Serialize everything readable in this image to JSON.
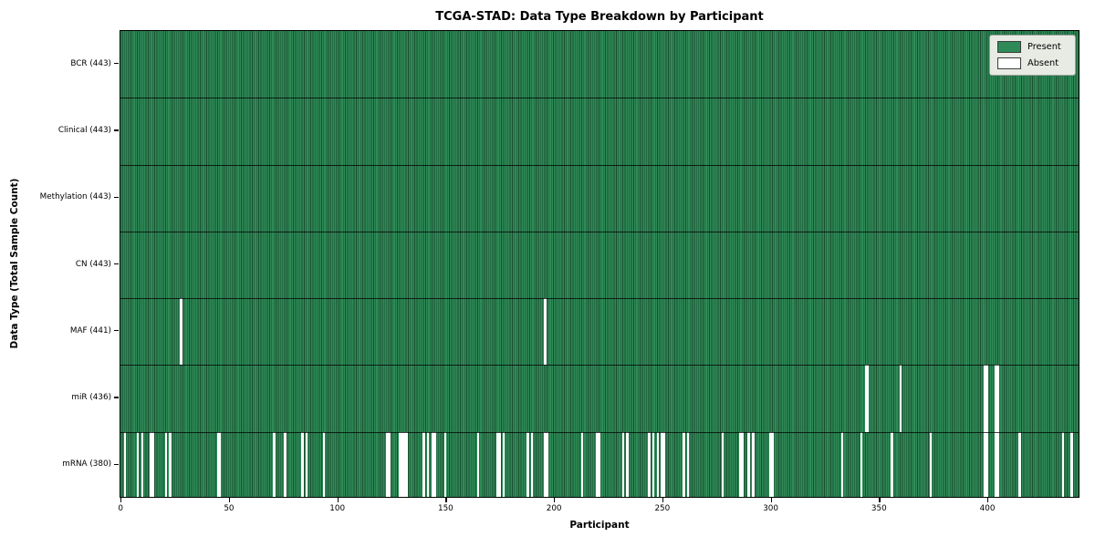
{
  "chart_data": {
    "type": "heatmap",
    "title": "TCGA-STAD: Data Type Breakdown by Participant",
    "xlabel": "Participant",
    "ylabel": "Data Type (Total Sample Count)",
    "n_participants": 443,
    "x_ticks": [
      0,
      50,
      100,
      150,
      200,
      250,
      300,
      350,
      400
    ],
    "xlim": [
      0,
      443
    ],
    "grid": false,
    "legend_position": "upper right",
    "legend": [
      {
        "label": "Present",
        "color": "#2e8b57"
      },
      {
        "label": "Absent",
        "color": "#ffffff"
      }
    ],
    "colors": {
      "present_fill": "#2e8b57",
      "bar_edge": "#1a4e30",
      "absent_fill": "#ffffff",
      "separator": "#000000"
    },
    "rows": [
      {
        "label": "BCR (443)",
        "data_type": "BCR",
        "present_count": 443,
        "absent_participants": []
      },
      {
        "label": "Clinical (443)",
        "data_type": "Clinical",
        "present_count": 443,
        "absent_participants": []
      },
      {
        "label": "Methylation (443)",
        "data_type": "Methylation",
        "present_count": 443,
        "absent_participants": []
      },
      {
        "label": "CN (443)",
        "data_type": "CN",
        "present_count": 443,
        "absent_participants": []
      },
      {
        "label": "MAF (441)",
        "data_type": "MAF",
        "present_count": 441,
        "absent_participants": [
          28,
          196
        ]
      },
      {
        "label": "miR (436)",
        "data_type": "miR",
        "present_count": 436,
        "absent_participants": [
          344,
          345,
          360,
          399,
          400,
          404,
          405
        ]
      },
      {
        "label": "mRNA (380)",
        "data_type": "mRNA",
        "present_count": 380,
        "absent_participants": [
          2,
          8,
          10,
          14,
          15,
          21,
          23,
          45,
          46,
          71,
          76,
          84,
          86,
          94,
          123,
          124,
          129,
          130,
          131,
          132,
          140,
          142,
          144,
          145,
          150,
          165,
          174,
          175,
          177,
          188,
          190,
          196,
          197,
          213,
          220,
          221,
          232,
          234,
          244,
          246,
          248,
          250,
          251,
          260,
          262,
          278,
          286,
          287,
          290,
          292,
          300,
          301,
          333,
          342,
          356,
          374,
          399,
          400,
          404,
          405,
          415,
          435,
          439
        ]
      }
    ]
  }
}
